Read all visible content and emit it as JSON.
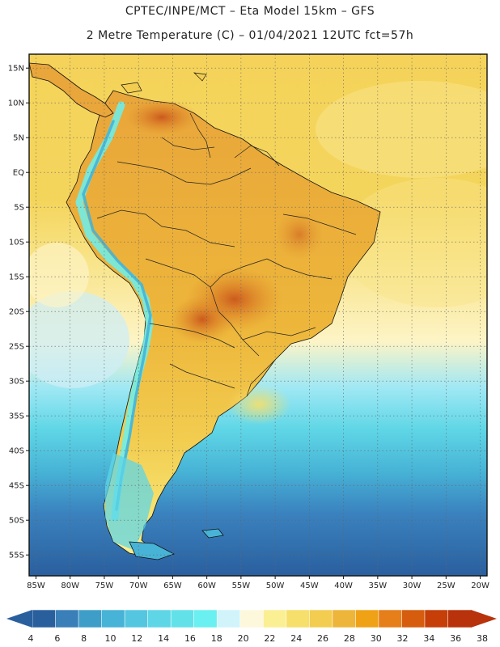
{
  "header": {
    "title_line1": "CPTEC/INPE/MCT  –   Eta Model 15km  –  GFS",
    "title_line2": "2 Metre Temperature (C) – 01/04/2021 12UTC fct=57h"
  },
  "map": {
    "lat_labels": [
      "15N",
      "10N",
      "5N",
      "EQ",
      "5S",
      "10S",
      "15S",
      "20S",
      "25S",
      "30S",
      "35S",
      "40S",
      "45S",
      "50S",
      "55S"
    ],
    "lon_labels": [
      "85W",
      "80W",
      "75W",
      "70W",
      "65W",
      "60W",
      "55W",
      "50W",
      "45W",
      "40W",
      "35W",
      "30W",
      "25W",
      "20W"
    ],
    "lat_range": [
      -58,
      17
    ],
    "lon_range": [
      -86,
      -19
    ]
  },
  "colorbar": {
    "labels": [
      "4",
      "6",
      "8",
      "10",
      "12",
      "14",
      "16",
      "18",
      "20",
      "22",
      "24",
      "26",
      "28",
      "30",
      "32",
      "34",
      "36",
      "38"
    ],
    "colors": [
      "#2a5f9e",
      "#3a7fb8",
      "#3f9ec8",
      "#47b3d6",
      "#55c6e0",
      "#5fd6e6",
      "#62e2e8",
      "#6af0f0",
      "#d0f4fa",
      "#fdf8dc",
      "#fbef94",
      "#f6df6a",
      "#f2cd50",
      "#edb63a",
      "#f0a216",
      "#e67e1a",
      "#d65c0e",
      "#c63e08",
      "#b8320c"
    ],
    "left_arrow_color": "#2a5f9e",
    "right_arrow_color": "#b8320c"
  },
  "colors": {
    "ocean_north": "#f5d35a",
    "ocean_warm": "#f8e48a",
    "ocean_mid": "#fdf4c6",
    "ocean_cool": "#70d8ec",
    "ocean_cold": "#3a82bf",
    "ocean_deep": "#2a5f9e",
    "land": "#edb63a",
    "land_hot": "#d2701e"
  }
}
